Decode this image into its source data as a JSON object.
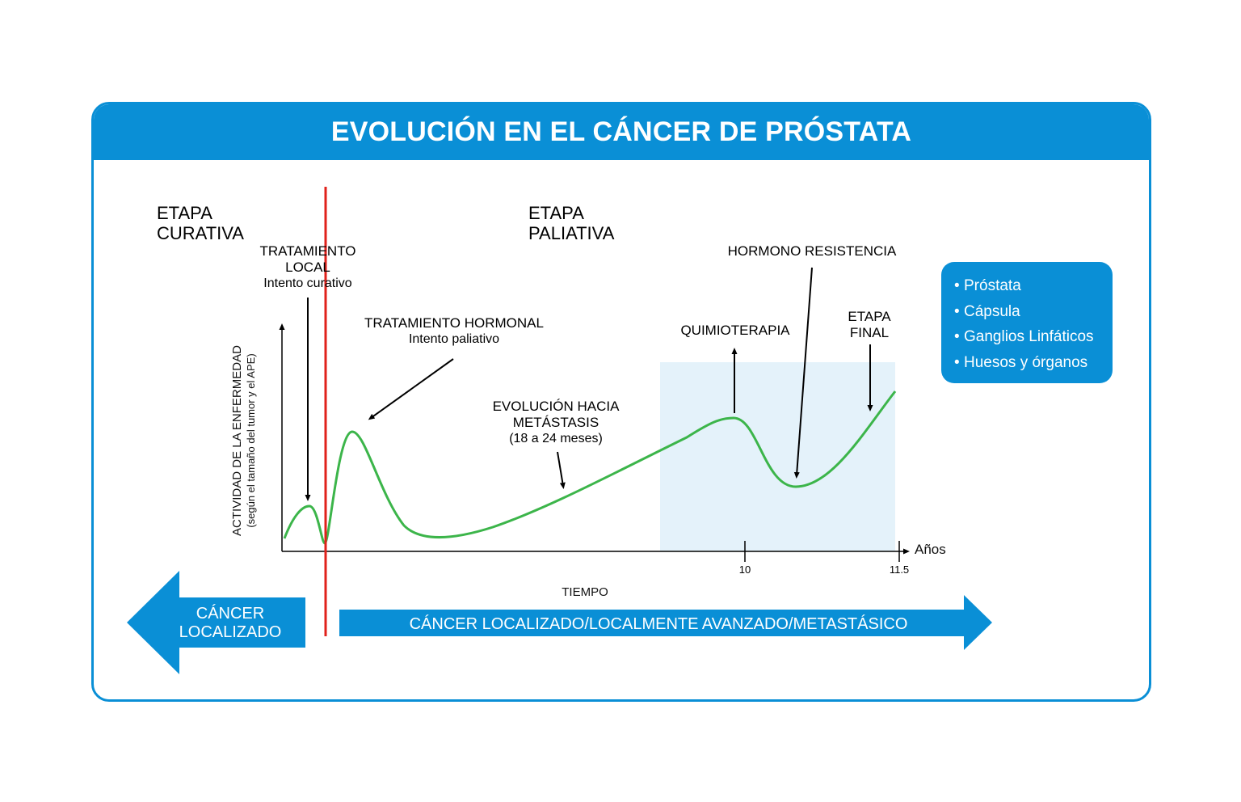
{
  "title": "EVOLUCIÓN EN EL CÁNCER DE PRÓSTATA",
  "stages": {
    "curative": [
      "ETAPA",
      "CURATIVA"
    ],
    "palliative": [
      "ETAPA",
      "PALIATIVA"
    ]
  },
  "annotations": {
    "local_treatment": [
      "TRATAMIENTO",
      "LOCAL",
      "Intento curativo"
    ],
    "hormonal_treatment": [
      "TRATAMIENTO HORMONAL",
      "Intento paliativo"
    ],
    "metastasis": [
      "EVOLUCIÓN HACIA",
      "METÁSTASIS",
      "(18 a 24 meses)"
    ],
    "chemo": "QUIMIOTERAPIA",
    "hormone_resistance": "HORMONO RESISTENCIA",
    "final_stage": [
      "ETAPA",
      "FINAL"
    ]
  },
  "axis": {
    "ylabel": "ACTIVIDAD DE LA ENFERMEDAD",
    "ylabel_sub": "(según el tamaño del tumor y el APE)",
    "xlabel": "TIEMPO",
    "x_unit": "Años",
    "ticks": [
      "10",
      "11.5"
    ]
  },
  "legend": [
    "Próstata",
    "Cápsula",
    "Ganglios Linfáticos",
    "Huesos y órganos"
  ],
  "legend_bullet": "•",
  "bottom_arrows": {
    "left": [
      "CÁNCER",
      "LOCALIZADO"
    ],
    "right": "CÁNCER LOCALIZADO/LOCALMENTE AVANZADO/METASTÁSICO"
  },
  "colors": {
    "brand_blue": "#0a8fd6",
    "curve_green": "#3cb54a",
    "divider_red": "#e0211b",
    "highlight_region": "#e4f2fa"
  }
}
